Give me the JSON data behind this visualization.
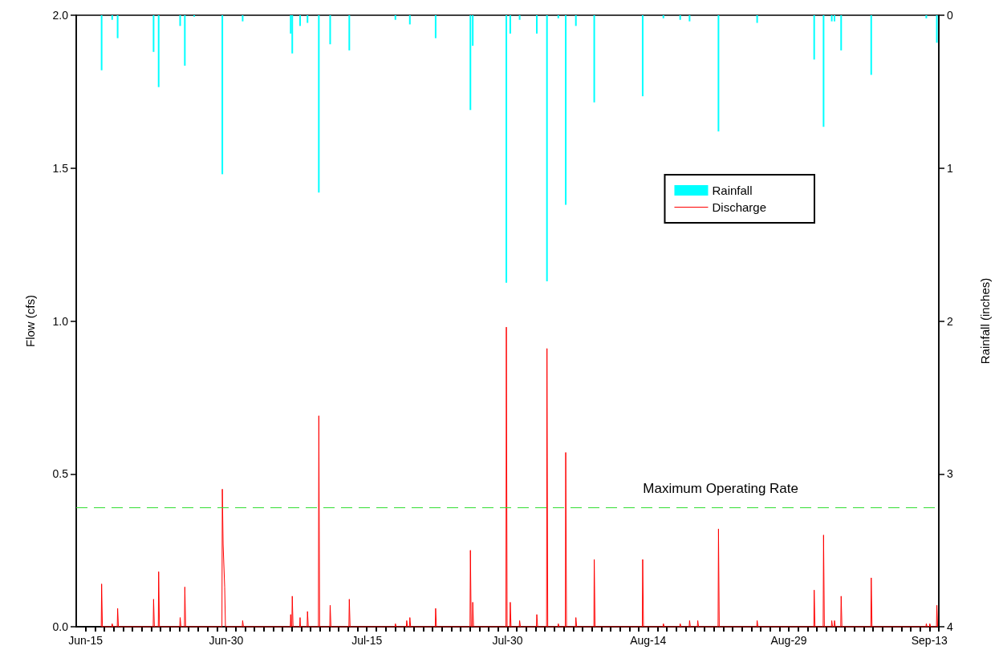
{
  "chart_data": {
    "type": "line",
    "xlabel": null,
    "ylabel": "Flow (cfs)",
    "y2label": "Rainfall (inches)",
    "xlim": [
      "--06-14",
      "--09-14"
    ],
    "xticks": [
      {
        "value": "--06-15",
        "label": "Jun-15"
      },
      {
        "value": "--06-16",
        "label": null
      },
      {
        "value": "--06-17",
        "label": null
      },
      {
        "value": "--06-18",
        "label": null
      },
      {
        "value": "--06-19",
        "label": null
      },
      {
        "value": "--06-20",
        "label": null
      },
      {
        "value": "--06-21",
        "label": null
      },
      {
        "value": "--06-22",
        "label": null
      },
      {
        "value": "--06-23",
        "label": null
      },
      {
        "value": "--06-24",
        "label": null
      },
      {
        "value": "--06-25",
        "label": null
      },
      {
        "value": "--06-26",
        "label": null
      },
      {
        "value": "--06-27",
        "label": null
      },
      {
        "value": "--06-28",
        "label": null
      },
      {
        "value": "--06-29",
        "label": null
      },
      {
        "value": "--06-30",
        "label": "Jun-30"
      },
      {
        "value": "--07-01",
        "label": null
      },
      {
        "value": "--07-02",
        "label": null
      },
      {
        "value": "--07-03",
        "label": null
      },
      {
        "value": "--07-04",
        "label": null
      },
      {
        "value": "--07-05",
        "label": null
      },
      {
        "value": "--07-06",
        "label": null
      },
      {
        "value": "--07-07",
        "label": null
      },
      {
        "value": "--07-08",
        "label": null
      },
      {
        "value": "--07-09",
        "label": null
      },
      {
        "value": "--07-10",
        "label": null
      },
      {
        "value": "--07-11",
        "label": null
      },
      {
        "value": "--07-12",
        "label": null
      },
      {
        "value": "--07-13",
        "label": null
      },
      {
        "value": "--07-14",
        "label": null
      },
      {
        "value": "--07-15",
        "label": "Jul-15"
      },
      {
        "value": "--07-16",
        "label": null
      },
      {
        "value": "--07-17",
        "label": null
      },
      {
        "value": "--07-18",
        "label": null
      },
      {
        "value": "--07-19",
        "label": null
      },
      {
        "value": "--07-20",
        "label": null
      },
      {
        "value": "--07-21",
        "label": null
      },
      {
        "value": "--07-22",
        "label": null
      },
      {
        "value": "--07-23",
        "label": null
      },
      {
        "value": "--07-24",
        "label": null
      },
      {
        "value": "--07-25",
        "label": null
      },
      {
        "value": "--07-26",
        "label": null
      },
      {
        "value": "--07-27",
        "label": null
      },
      {
        "value": "--07-28",
        "label": null
      },
      {
        "value": "--07-29",
        "label": null
      },
      {
        "value": "--07-30",
        "label": "Jul-30"
      },
      {
        "value": "--07-31",
        "label": null
      },
      {
        "value": "--08-01",
        "label": null
      },
      {
        "value": "--08-02",
        "label": null
      },
      {
        "value": "--08-03",
        "label": null
      },
      {
        "value": "--08-04",
        "label": null
      },
      {
        "value": "--08-05",
        "label": null
      },
      {
        "value": "--08-06",
        "label": null
      },
      {
        "value": "--08-07",
        "label": null
      },
      {
        "value": "--08-08",
        "label": null
      },
      {
        "value": "--08-09",
        "label": null
      },
      {
        "value": "--08-10",
        "label": null
      },
      {
        "value": "--08-11",
        "label": null
      },
      {
        "value": "--08-12",
        "label": null
      },
      {
        "value": "--08-13",
        "label": null
      },
      {
        "value": "--08-14",
        "label": "Aug-14"
      },
      {
        "value": "--08-15",
        "label": null
      },
      {
        "value": "--08-16",
        "label": null
      },
      {
        "value": "--08-17",
        "label": null
      },
      {
        "value": "--08-18",
        "label": null
      },
      {
        "value": "--08-19",
        "label": null
      },
      {
        "value": "--08-20",
        "label": null
      },
      {
        "value": "--08-21",
        "label": null
      },
      {
        "value": "--08-22",
        "label": null
      },
      {
        "value": "--08-23",
        "label": null
      },
      {
        "value": "--08-24",
        "label": null
      },
      {
        "value": "--08-25",
        "label": null
      },
      {
        "value": "--08-26",
        "label": null
      },
      {
        "value": "--08-27",
        "label": null
      },
      {
        "value": "--08-28",
        "label": null
      },
      {
        "value": "--08-29",
        "label": "Aug-29"
      },
      {
        "value": "--08-30",
        "label": null
      },
      {
        "value": "--08-31",
        "label": null
      },
      {
        "value": "--09-01",
        "label": null
      },
      {
        "value": "--09-02",
        "label": null
      },
      {
        "value": "--09-03",
        "label": null
      },
      {
        "value": "--09-04",
        "label": null
      },
      {
        "value": "--09-05",
        "label": null
      },
      {
        "value": "--09-06",
        "label": null
      },
      {
        "value": "--09-07",
        "label": null
      },
      {
        "value": "--09-08",
        "label": null
      },
      {
        "value": "--09-09",
        "label": null
      },
      {
        "value": "--09-10",
        "label": null
      },
      {
        "value": "--09-11",
        "label": null
      },
      {
        "value": "--09-12",
        "label": null
      },
      {
        "value": "--09-13",
        "label": "Sep-13"
      },
      {
        "value": "--09-14",
        "label": null
      }
    ],
    "ylim": [
      0,
      2
    ],
    "yticks": [
      {
        "value": 0,
        "label": "0.0"
      },
      0.5,
      {
        "value": 1,
        "label": "1.0"
      },
      1.5,
      {
        "value": 2,
        "label": "2.0"
      }
    ],
    "y2lim": [
      4,
      0
    ],
    "y2ticks": [
      0,
      1,
      2,
      3,
      4
    ],
    "grid": false,
    "legend": "top right",
    "marker": "none",
    "line_style": "solid",
    "ref_lines": [
      {
        "axis": "y",
        "value": 0.39,
        "label": "Maximum Operating Rate",
        "color": "#33dd33",
        "line_style": "dashed"
      }
    ],
    "series": [
      {
        "name": "Rainfall",
        "type": "bar",
        "axis": "y2",
        "color": "#00ffff",
        "x": [
          "--06-16T17:00",
          "--06-17T20:00",
          "--06-18T10:00",
          "--06-22T06:00",
          "--06-22T19:00",
          "--06-25T02:00",
          "--06-25T14:00",
          "--06-26T14:00",
          "--06-29T14:00",
          "--07-01T18:00",
          "--07-06T21:00",
          "--07-07T01:00",
          "--07-07T21:00",
          "--07-08T16:00",
          "--07-09T21:00",
          "--07-11T02:00",
          "--07-13T03:00",
          "--07-18T01:00",
          "--07-19T14:00",
          "--07-22T08:00",
          "--07-26T01:00",
          "--07-26T07:00",
          "--07-29T21:00",
          "--07-30T07:00",
          "--07-31T07:00",
          "--08-02T03:00",
          "--08-03T05:00",
          "--08-04T10:00",
          "--08-05T05:00",
          "--08-06T07:00",
          "--08-08T06:00",
          "--08-13T10:00",
          "--08-15T15:00",
          "--08-17T10:00",
          "--08-18T10:00",
          "--08-21T12:00",
          "--08-25T15:00",
          "--08-31T17:00",
          "--09-01T17:00",
          "--09-02T14:00",
          "--09-02T21:00",
          "--09-03T14:00",
          "--09-06T19:00",
          "--09-12T16:00",
          "--09-13T19:00"
        ],
        "values": [
          0.36,
          0.03,
          0.15,
          0.24,
          0.47,
          0.07,
          0.33,
          0.01,
          1.04,
          0.04,
          0.12,
          0.25,
          0.07,
          0.05,
          1.16,
          0.19,
          0.23,
          0.03,
          0.06,
          0.15,
          0.62,
          0.2,
          1.75,
          0.12,
          0.03,
          0.12,
          1.74,
          0.02,
          1.24,
          0.07,
          0.57,
          0.53,
          0.02,
          0.03,
          0.04,
          0.76,
          0.05,
          0.29,
          0.73,
          0.04,
          0.04,
          0.23,
          0.39,
          0.02,
          0.18
        ]
      },
      {
        "name": "Discharge",
        "color": "#ff0000",
        "x": [
          "--06-16T16:00",
          "--06-16T17:00",
          "--06-16T19:00",
          "--06-17T19:00",
          "--06-17T20:00",
          "--06-17T22:00",
          "--06-18T09:00",
          "--06-18T10:00",
          "--06-18T12:00",
          "--06-22T05:00",
          "--06-22T06:00",
          "--06-22T08:00",
          "--06-22T18:00",
          "--06-22T19:00",
          "--06-22T21:00",
          "--06-25T01:00",
          "--06-25T02:00",
          "--06-25T04:00",
          "--06-25T13:00",
          "--06-25T14:00",
          "--06-25T16:00",
          "--06-29T13:00",
          "--06-29T14:00",
          "--06-29T16:00",
          "--06-29T20:00",
          "--06-29T22:00",
          "--07-01T17:00",
          "--07-01T18:00",
          "--07-01T20:00",
          "--07-06T20:00",
          "--07-06T21:00",
          "--07-06T22:00",
          "--07-07T00:00",
          "--07-07T01:00",
          "--07-07T03:00",
          "--07-07T20:00",
          "--07-07T21:00",
          "--07-07T22:00",
          "--07-08T15:00",
          "--07-08T16:00",
          "--07-08T18:00",
          "--07-09T20:00",
          "--07-09T21:00",
          "--07-09T23:00",
          "--07-11T01:00",
          "--07-11T02:00",
          "--07-11T04:00",
          "--07-13T02:00",
          "--07-13T03:00",
          "--07-13T05:00",
          "--07-18T00:00",
          "--07-18T01:00",
          "--07-18T03:00",
          "--07-19T05:00",
          "--07-19T06:00",
          "--07-19T08:00",
          "--07-19T13:00",
          "--07-19T14:00",
          "--07-19T16:00",
          "--07-22T07:00",
          "--07-22T08:00",
          "--07-22T10:00",
          "--07-26T00:00",
          "--07-26T01:00",
          "--07-26T03:00",
          "--07-26T06:00",
          "--07-26T07:00",
          "--07-26T09:00",
          "--07-29T20:00",
          "--07-29T21:00",
          "--07-29T23:00",
          "--07-30T06:00",
          "--07-30T07:00",
          "--07-30T09:00",
          "--07-31T06:00",
          "--07-31T07:00",
          "--07-31T09:00",
          "--08-02T02:00",
          "--08-02T03:00",
          "--08-02T05:00",
          "--08-03T04:00",
          "--08-03T05:00",
          "--08-03T07:00",
          "--08-04T09:00",
          "--08-04T10:00",
          "--08-04T12:00",
          "--08-05T04:00",
          "--08-05T05:00",
          "--08-05T07:00",
          "--08-06T06:00",
          "--08-06T07:00",
          "--08-06T09:00",
          "--08-08T05:00",
          "--08-08T06:00",
          "--08-08T08:00",
          "--08-13T09:00",
          "--08-13T10:00",
          "--08-13T12:00",
          "--08-15T14:00",
          "--08-15T15:00",
          "--08-15T17:00",
          "--08-17T09:00",
          "--08-17T10:00",
          "--08-17T12:00",
          "--08-18T09:00",
          "--08-18T10:00",
          "--08-18T12:00",
          "--08-19T06:00",
          "--08-19T07:00",
          "--08-19T09:00",
          "--08-21T11:00",
          "--08-21T12:00",
          "--08-21T14:00",
          "--08-25T14:00",
          "--08-25T15:00",
          "--08-25T17:00",
          "--08-31T16:00",
          "--08-31T17:00",
          "--08-31T19:00",
          "--09-01T16:00",
          "--09-01T17:00",
          "--09-01T19:00",
          "--09-02T13:00",
          "--09-02T14:00",
          "--09-02T16:00",
          "--09-02T20:00",
          "--09-02T21:00",
          "--09-02T23:00",
          "--09-03T13:00",
          "--09-03T14:00",
          "--09-03T16:00",
          "--09-06T18:00",
          "--09-06T19:00",
          "--09-06T21:00",
          "--09-12T15:00",
          "--09-12T16:00",
          "--09-12T18:00",
          "--09-13T00:00",
          "--09-13T01:00",
          "--09-13T03:00",
          "--09-13T18:00",
          "--09-13T19:00",
          "--09-13T21:00"
        ],
        "values": [
          0,
          0.14,
          0,
          0,
          0.01,
          0,
          0,
          0.06,
          0,
          0,
          0.09,
          0,
          0,
          0.18,
          0,
          0,
          0.03,
          0,
          0,
          0.13,
          0,
          0,
          0.45,
          0.27,
          0.13,
          0,
          0,
          0.02,
          0,
          0,
          0.04,
          0,
          0,
          0.1,
          0,
          0,
          0.03,
          0,
          0,
          0.05,
          0,
          0,
          0.69,
          0,
          0,
          0.07,
          0,
          0,
          0.09,
          0,
          0,
          0.01,
          0,
          0,
          0.02,
          0,
          0,
          0.03,
          0,
          0,
          0.06,
          0,
          0,
          0.25,
          0,
          0,
          0.08,
          0,
          0,
          0.98,
          0,
          0,
          0.08,
          0,
          0,
          0.02,
          0,
          0,
          0.04,
          0,
          0,
          0.91,
          0,
          0,
          0.01,
          0,
          0,
          0.57,
          0,
          0,
          0.03,
          0,
          0,
          0.22,
          0,
          0,
          0.22,
          0,
          0,
          0.01,
          0,
          0,
          0.01,
          0,
          0,
          0.02,
          0,
          0,
          0.02,
          0,
          0,
          0.32,
          0,
          0,
          0.02,
          0,
          0,
          0.12,
          0,
          0,
          0.3,
          0,
          0,
          0.02,
          0,
          0,
          0.02,
          0,
          0,
          0.1,
          0,
          0,
          0.16,
          0,
          0,
          0.01,
          0,
          0,
          0.01,
          0,
          0,
          0.07,
          0
        ]
      }
    ]
  }
}
